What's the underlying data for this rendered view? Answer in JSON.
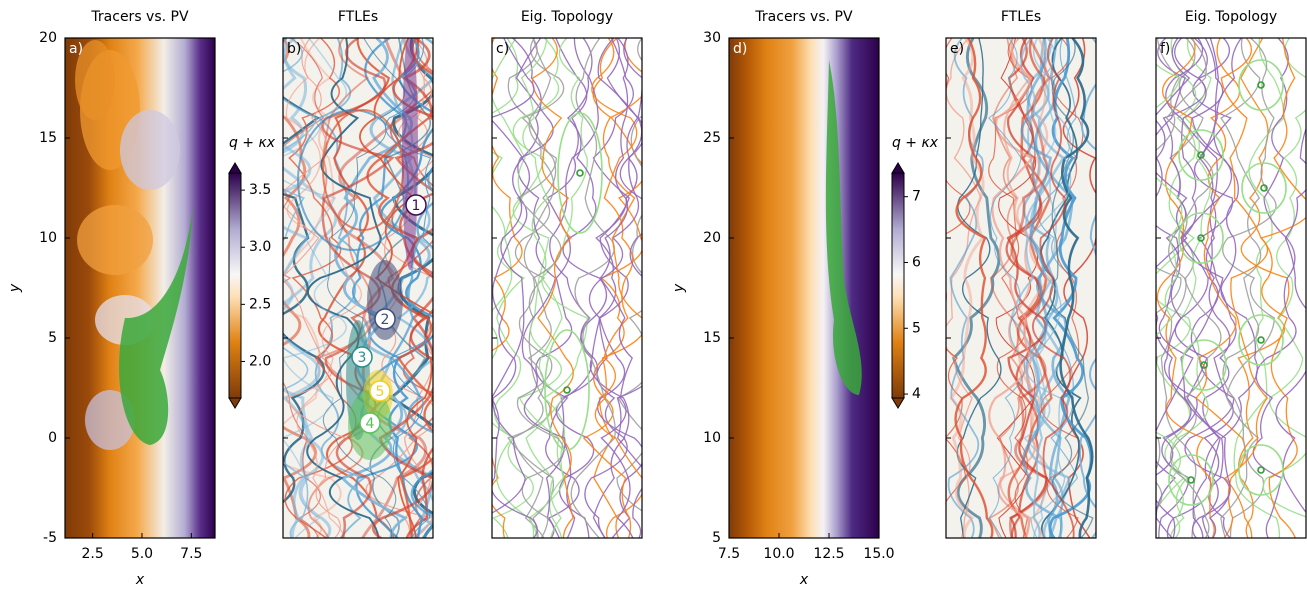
{
  "chart_data": [
    {
      "type": "heatmap",
      "title": "Tracers vs. PV",
      "label": "a)",
      "xlabel": "x",
      "ylabel": "y",
      "xlim": [
        1.1,
        8.7
      ],
      "xticks": [
        2.5,
        {
          "value": 5,
          "label": "5.0"
        },
        7.5
      ],
      "ylim": [
        -5,
        20
      ],
      "yticks": [
        -5,
        0,
        5,
        10,
        15,
        20
      ],
      "colorbar": {
        "label": "q + κx",
        "clim": [
          1.68,
          3.65
        ],
        "ticks": [
          {
            "value": 2,
            "label": "2.0"
          },
          2.5,
          {
            "value": 3,
            "label": "3.0"
          },
          3.5
        ]
      }
    },
    {
      "type": "ftle",
      "title": "FTLEs",
      "label": "b)",
      "ylim": [
        -5,
        20
      ],
      "yticks": [
        0,
        5,
        10,
        15
      ],
      "annotations": [
        {
          "text": "1",
          "color": "#3f0d55"
        },
        {
          "text": "2",
          "color": "#3e4d7e"
        },
        {
          "text": "3",
          "color": "#2b8c8c"
        },
        {
          "text": "4",
          "color": "#5cc15c"
        },
        {
          "text": "5",
          "color": "#f2cf1d"
        }
      ]
    },
    {
      "type": "streamplot",
      "title": "Eig. Topology",
      "label": "c)",
      "ylim": [
        -5,
        20
      ],
      "yticks": [
        0,
        5,
        10,
        15
      ]
    },
    {
      "type": "heatmap",
      "title": "Tracers vs. PV",
      "label": "d)",
      "xlabel": "x",
      "ylabel": "y",
      "xlim": [
        7.5,
        15
      ],
      "xticks": [
        7.5,
        {
          "value": 10,
          "label": "10.0"
        },
        12.5,
        {
          "value": 15,
          "label": "15.0"
        }
      ],
      "ylim": [
        5,
        30
      ],
      "yticks": [
        5,
        10,
        15,
        20,
        25,
        30
      ],
      "colorbar": {
        "label": "q + κx",
        "clim": [
          3.94,
          7.36
        ],
        "ticks": [
          4,
          5,
          6,
          7
        ]
      }
    },
    {
      "type": "ftle",
      "title": "FTLEs",
      "label": "e)",
      "ylim": [
        5,
        30
      ],
      "yticks": [
        10,
        15,
        20,
        25
      ]
    },
    {
      "type": "streamplot",
      "title": "Eig. Topology",
      "label": "f)",
      "ylim": [
        5,
        30
      ],
      "yticks": [
        10,
        15,
        20
      ]
    }
  ]
}
